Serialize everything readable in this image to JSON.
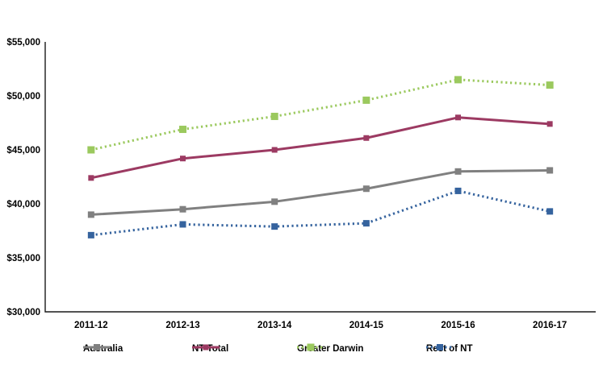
{
  "chart_data": {
    "type": "line",
    "title": "",
    "xlabel": "",
    "ylabel": "",
    "categories": [
      "2011-12",
      "2012-13",
      "2013-14",
      "2014-15",
      "2015-16",
      "2016-17"
    ],
    "series": [
      {
        "name": "Australia",
        "values": [
          39000,
          39500,
          40200,
          41400,
          43000,
          43100
        ],
        "color": "#808080",
        "line_style": "solid",
        "marker": "square",
        "marker_size": 8
      },
      {
        "name": "NT Total",
        "values": [
          42400,
          44200,
          45000,
          46100,
          48000,
          47400
        ],
        "color": "#9c3a62",
        "line_style": "solid",
        "marker": "square",
        "marker_size": 7
      },
      {
        "name": "Greater Darwin",
        "values": [
          45000,
          46900,
          48100,
          49600,
          51500,
          51000
        ],
        "color": "#9bc95e",
        "line_style": "dotted",
        "marker": "square",
        "marker_size": 9
      },
      {
        "name": "Rest of NT",
        "values": [
          37100,
          38100,
          37900,
          38200,
          41200,
          39300
        ],
        "color": "#35639e",
        "line_style": "dotted",
        "marker": "square",
        "marker_size": 8
      }
    ],
    "ylim": [
      30000,
      55000
    ],
    "ytick_values": [
      30000,
      35000,
      40000,
      45000,
      50000,
      55000
    ],
    "ytick_labels": [
      "$30,000",
      "$35,000",
      "$40,000",
      "$45,000",
      "$50,000",
      "$55,000"
    ],
    "grid": false,
    "legend_position": "bottom",
    "axis_color": "#1a1a1a",
    "background_color": "#ffffff"
  }
}
